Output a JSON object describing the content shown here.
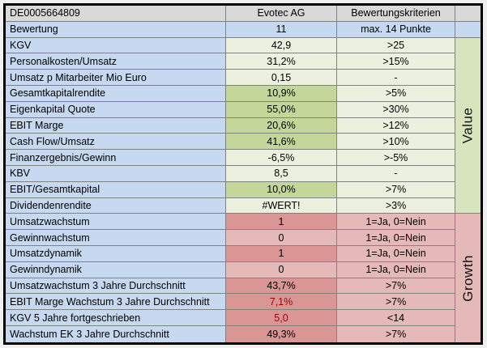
{
  "colors": {
    "header_bg": "#d9d9d9",
    "label_bg": "#c6d9f1",
    "green_light": "#ebf1de",
    "green_dark": "#c4d79b",
    "green_strip": "#d8e4bc",
    "pink_light": "#e5b9b7",
    "pink_dark": "#d99694",
    "red_text": "#9c0006",
    "grid_line": "#828282"
  },
  "header": {
    "isin": "DE0005664809",
    "company": "Evotec AG",
    "criteria_title": "Bewertungskriterien"
  },
  "score": {
    "label": "Bewertung",
    "value": "11",
    "criteria": "max. 14 Punkte"
  },
  "sections": [
    {
      "name": "Value",
      "rows": [
        {
          "label": "KGV",
          "value": "42,9",
          "criteria": ">25",
          "highlight": false,
          "red": false
        },
        {
          "label": "Personalkosten/Umsatz",
          "value": "31,2%",
          "criteria": ">15%",
          "highlight": false,
          "red": false
        },
        {
          "label": "Umsatz p Mitarbeiter Mio Euro",
          "value": "0,15",
          "criteria": "-",
          "highlight": false,
          "red": false
        },
        {
          "label": "Gesamtkapitalrendite",
          "value": "10,9%",
          "criteria": ">5%",
          "highlight": true,
          "red": false
        },
        {
          "label": "Eigenkapital Quote",
          "value": "55,0%",
          "criteria": ">30%",
          "highlight": true,
          "red": false
        },
        {
          "label": "EBIT Marge",
          "value": "20,6%",
          "criteria": ">12%",
          "highlight": true,
          "red": false
        },
        {
          "label": "Cash Flow/Umsatz",
          "value": "41,6%",
          "criteria": ">10%",
          "highlight": true,
          "red": false
        },
        {
          "label": "Finanzergebnis/Gewinn",
          "value": "-6,5%",
          "criteria": ">-5%",
          "highlight": false,
          "red": false
        },
        {
          "label": "KBV",
          "value": "8,5",
          "criteria": "-",
          "highlight": false,
          "red": false
        },
        {
          "label": "EBIT/Gesamtkapital",
          "value": "10,0%",
          "criteria": ">7%",
          "highlight": true,
          "red": false
        },
        {
          "label": "Dividendenrendite",
          "value": "#WERT!",
          "criteria": ">3%",
          "highlight": false,
          "red": false
        }
      ]
    },
    {
      "name": "Growth",
      "rows": [
        {
          "label": "Umsatzwachstum",
          "value": "1",
          "criteria": "1=Ja, 0=Nein",
          "highlight": true,
          "red": false
        },
        {
          "label": "Gewinnwachstum",
          "value": "0",
          "criteria": "1=Ja, 0=Nein",
          "highlight": false,
          "red": false
        },
        {
          "label": "Umsatzdynamik",
          "value": "1",
          "criteria": "1=Ja, 0=Nein",
          "highlight": true,
          "red": false
        },
        {
          "label": "Gewinndynamik",
          "value": "0",
          "criteria": "1=Ja, 0=Nein",
          "highlight": false,
          "red": false
        },
        {
          "label": "Umsatzwachstum 3 Jahre Durchschnitt",
          "value": "43,7%",
          "criteria": ">7%",
          "highlight": true,
          "red": false
        },
        {
          "label": "EBIT Marge Wachstum 3 Jahre Durchschnitt",
          "value": "7,1%",
          "criteria": ">7%",
          "highlight": true,
          "red": true
        },
        {
          "label": "KGV 5 Jahre fortgeschrieben",
          "value": "5,0",
          "criteria": "<14",
          "highlight": true,
          "red": true
        },
        {
          "label": "Wachstum EK 3 Jahre Durchschnitt",
          "value": "49,3%",
          "criteria": ">7%",
          "highlight": true,
          "red": false
        }
      ]
    }
  ]
}
